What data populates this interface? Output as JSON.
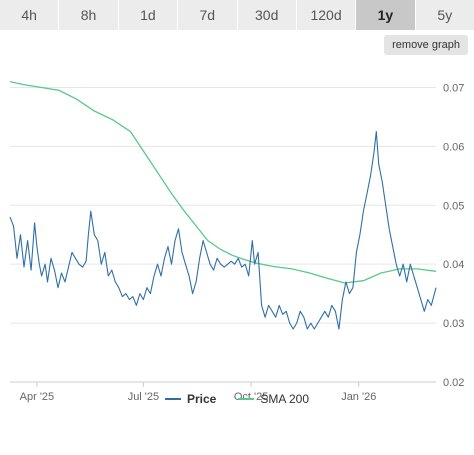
{
  "range_tabs": [
    {
      "label": "4h",
      "active": false
    },
    {
      "label": "8h",
      "active": false
    },
    {
      "label": "1d",
      "active": false
    },
    {
      "label": "7d",
      "active": false
    },
    {
      "label": "30d",
      "active": false
    },
    {
      "label": "120d",
      "active": false
    },
    {
      "label": "1y",
      "active": true
    },
    {
      "label": "5y",
      "active": false
    }
  ],
  "remove_graph_label": "remove graph",
  "colors": {
    "price": "#2f6fa8",
    "sma": "#58c98a",
    "grid": "#e6e6e6",
    "axis_text": "#666666"
  },
  "chart_data": {
    "type": "line",
    "x_range": [
      "2025-03-09",
      "2026-03-08"
    ],
    "ylim": [
      0.02,
      0.075
    ],
    "yticks": [
      0.02,
      0.03,
      0.04,
      0.05,
      0.06,
      0.07
    ],
    "ytick_labels": [
      "0.02",
      "0.03",
      "0.04",
      "0.05",
      "0.06",
      "0.07"
    ],
    "xticks": [
      {
        "date": "2025-04-01",
        "label": "Apr '25"
      },
      {
        "date": "2025-07-01",
        "label": "Jul '25"
      },
      {
        "date": "2025-10-01",
        "label": "Oct '25"
      },
      {
        "date": "2026-01-01",
        "label": "Jan '26"
      }
    ],
    "legend_position": "bottom",
    "series": [
      {
        "name": "Price",
        "points": [
          [
            "2025-03-09",
            0.048
          ],
          [
            "2025-03-12",
            0.0465
          ],
          [
            "2025-03-15",
            0.041
          ],
          [
            "2025-03-18",
            0.045
          ],
          [
            "2025-03-21",
            0.0395
          ],
          [
            "2025-03-24",
            0.044
          ],
          [
            "2025-03-27",
            0.039
          ],
          [
            "2025-03-30",
            0.047
          ],
          [
            "2025-04-01",
            0.043
          ],
          [
            "2025-04-03",
            0.04
          ],
          [
            "2025-04-05",
            0.038
          ],
          [
            "2025-04-08",
            0.04
          ],
          [
            "2025-04-10",
            0.037
          ],
          [
            "2025-04-13",
            0.041
          ],
          [
            "2025-04-16",
            0.039
          ],
          [
            "2025-04-19",
            0.036
          ],
          [
            "2025-04-22",
            0.0385
          ],
          [
            "2025-04-25",
            0.037
          ],
          [
            "2025-04-28",
            0.0395
          ],
          [
            "2025-05-01",
            0.042
          ],
          [
            "2025-05-04",
            0.041
          ],
          [
            "2025-05-07",
            0.04
          ],
          [
            "2025-05-10",
            0.0395
          ],
          [
            "2025-05-13",
            0.0405
          ],
          [
            "2025-05-15",
            0.045
          ],
          [
            "2025-05-17",
            0.049
          ],
          [
            "2025-05-20",
            0.045
          ],
          [
            "2025-05-23",
            0.044
          ],
          [
            "2025-05-26",
            0.04
          ],
          [
            "2025-05-29",
            0.042
          ],
          [
            "2025-06-01",
            0.038
          ],
          [
            "2025-06-04",
            0.039
          ],
          [
            "2025-06-07",
            0.037
          ],
          [
            "2025-06-10",
            0.036
          ],
          [
            "2025-06-13",
            0.0345
          ],
          [
            "2025-06-16",
            0.035
          ],
          [
            "2025-06-19",
            0.034
          ],
          [
            "2025-06-22",
            0.0345
          ],
          [
            "2025-06-25",
            0.033
          ],
          [
            "2025-06-28",
            0.035
          ],
          [
            "2025-07-01",
            0.034
          ],
          [
            "2025-07-04",
            0.036
          ],
          [
            "2025-07-07",
            0.035
          ],
          [
            "2025-07-10",
            0.038
          ],
          [
            "2025-07-13",
            0.04
          ],
          [
            "2025-07-16",
            0.038
          ],
          [
            "2025-07-19",
            0.041
          ],
          [
            "2025-07-22",
            0.043
          ],
          [
            "2025-07-25",
            0.04
          ],
          [
            "2025-07-28",
            0.044
          ],
          [
            "2025-07-31",
            0.046
          ],
          [
            "2025-08-03",
            0.042
          ],
          [
            "2025-08-06",
            0.04
          ],
          [
            "2025-08-09",
            0.038
          ],
          [
            "2025-08-12",
            0.035
          ],
          [
            "2025-08-15",
            0.037
          ],
          [
            "2025-08-18",
            0.041
          ],
          [
            "2025-08-21",
            0.044
          ],
          [
            "2025-08-24",
            0.042
          ],
          [
            "2025-08-27",
            0.04
          ],
          [
            "2025-08-30",
            0.039
          ],
          [
            "2025-09-02",
            0.041
          ],
          [
            "2025-09-05",
            0.04
          ],
          [
            "2025-09-08",
            0.0395
          ],
          [
            "2025-09-11",
            0.04
          ],
          [
            "2025-09-14",
            0.0405
          ],
          [
            "2025-09-17",
            0.04
          ],
          [
            "2025-09-20",
            0.041
          ],
          [
            "2025-09-23",
            0.0395
          ],
          [
            "2025-09-26",
            0.04
          ],
          [
            "2025-09-29",
            0.038
          ],
          [
            "2025-10-02",
            0.044
          ],
          [
            "2025-10-04",
            0.04
          ],
          [
            "2025-10-07",
            0.042
          ],
          [
            "2025-10-10",
            0.033
          ],
          [
            "2025-10-13",
            0.031
          ],
          [
            "2025-10-16",
            0.033
          ],
          [
            "2025-10-19",
            0.032
          ],
          [
            "2025-10-22",
            0.031
          ],
          [
            "2025-10-25",
            0.033
          ],
          [
            "2025-10-28",
            0.0315
          ],
          [
            "2025-10-31",
            0.032
          ],
          [
            "2025-11-03",
            0.03
          ],
          [
            "2025-11-06",
            0.029
          ],
          [
            "2025-11-09",
            0.03
          ],
          [
            "2025-11-12",
            0.032
          ],
          [
            "2025-11-15",
            0.031
          ],
          [
            "2025-11-18",
            0.029
          ],
          [
            "2025-11-21",
            0.03
          ],
          [
            "2025-11-24",
            0.029
          ],
          [
            "2025-11-27",
            0.03
          ],
          [
            "2025-11-30",
            0.031
          ],
          [
            "2025-12-03",
            0.032
          ],
          [
            "2025-12-06",
            0.031
          ],
          [
            "2025-12-09",
            0.033
          ],
          [
            "2025-12-12",
            0.032
          ],
          [
            "2025-12-15",
            0.029
          ],
          [
            "2025-12-18",
            0.034
          ],
          [
            "2025-12-21",
            0.037
          ],
          [
            "2025-12-24",
            0.035
          ],
          [
            "2025-12-27",
            0.036
          ],
          [
            "2025-12-30",
            0.042
          ],
          [
            "2026-01-02",
            0.045
          ],
          [
            "2026-01-05",
            0.049
          ],
          [
            "2026-01-08",
            0.052
          ],
          [
            "2026-01-11",
            0.055
          ],
          [
            "2026-01-14",
            0.059
          ],
          [
            "2026-01-16",
            0.0625
          ],
          [
            "2026-01-18",
            0.057
          ],
          [
            "2026-01-21",
            0.054
          ],
          [
            "2026-01-24",
            0.05
          ],
          [
            "2026-01-27",
            0.046
          ],
          [
            "2026-01-30",
            0.043
          ],
          [
            "2026-02-02",
            0.04
          ],
          [
            "2026-02-05",
            0.038
          ],
          [
            "2026-02-08",
            0.04
          ],
          [
            "2026-02-11",
            0.037
          ],
          [
            "2026-02-14",
            0.04
          ],
          [
            "2026-02-17",
            0.038
          ],
          [
            "2026-02-20",
            0.036
          ],
          [
            "2026-02-23",
            0.034
          ],
          [
            "2026-02-26",
            0.032
          ],
          [
            "2026-03-01",
            0.034
          ],
          [
            "2026-03-04",
            0.033
          ],
          [
            "2026-03-08",
            0.036
          ]
        ]
      },
      {
        "name": "SMA 200",
        "points": [
          [
            "2025-03-09",
            0.071
          ],
          [
            "2025-03-20",
            0.0705
          ],
          [
            "2025-04-05",
            0.07
          ],
          [
            "2025-04-20",
            0.0695
          ],
          [
            "2025-05-05",
            0.068
          ],
          [
            "2025-05-20",
            0.066
          ],
          [
            "2025-06-05",
            0.0645
          ],
          [
            "2025-06-20",
            0.0625
          ],
          [
            "2025-07-05",
            0.058
          ],
          [
            "2025-07-15",
            0.055
          ],
          [
            "2025-07-25",
            0.052
          ],
          [
            "2025-08-05",
            0.049
          ],
          [
            "2025-08-15",
            0.0465
          ],
          [
            "2025-08-25",
            0.044
          ],
          [
            "2025-09-05",
            0.0425
          ],
          [
            "2025-09-15",
            0.0415
          ],
          [
            "2025-09-25",
            0.0408
          ],
          [
            "2025-10-05",
            0.0402
          ],
          [
            "2025-10-20",
            0.0396
          ],
          [
            "2025-11-05",
            0.0392
          ],
          [
            "2025-11-20",
            0.0385
          ],
          [
            "2025-12-05",
            0.0376
          ],
          [
            "2025-12-20",
            0.0368
          ],
          [
            "2026-01-05",
            0.0372
          ],
          [
            "2026-01-20",
            0.0385
          ],
          [
            "2026-02-05",
            0.0392
          ],
          [
            "2026-02-20",
            0.0392
          ],
          [
            "2026-03-08",
            0.0388
          ]
        ]
      }
    ]
  }
}
